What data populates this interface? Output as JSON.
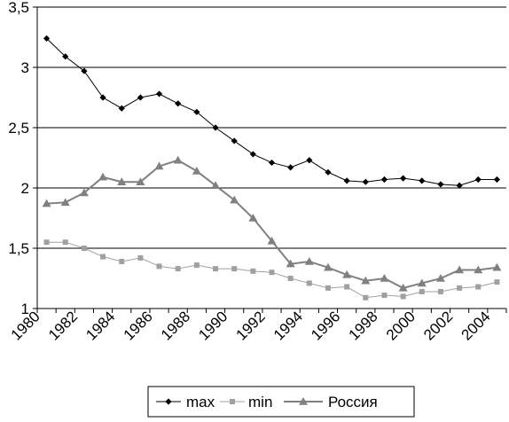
{
  "chart_data": {
    "type": "line",
    "title": "",
    "xlabel": "",
    "ylabel": "",
    "x": [
      1980.5,
      1981.5,
      1982.5,
      1983.5,
      1984.5,
      1985.5,
      1986.5,
      1987.5,
      1988.5,
      1989.5,
      1990.5,
      1991.5,
      1992.5,
      1993.5,
      1994.5,
      1995.5,
      1996.5,
      1997.5,
      1998.5,
      1999.5,
      2000.5,
      2001.5,
      2002.5,
      2003.5,
      2004.5
    ],
    "xlim": [
      1980,
      2005
    ],
    "ylim": [
      1,
      3.5
    ],
    "x_ticks": [
      "1980",
      "1982",
      "1984",
      "1986",
      "1988",
      "1990",
      "1992",
      "1994",
      "1996",
      "1998",
      "2000",
      "2002",
      "2004"
    ],
    "y_ticks": [
      "1",
      "1,5",
      "2",
      "2,5",
      "3",
      "3,5"
    ],
    "grid": "horizontal",
    "legend_position": "bottom",
    "series": [
      {
        "name": "max",
        "marker": "diamond",
        "color": "#000000",
        "values": [
          3.24,
          3.09,
          2.97,
          2.75,
          2.66,
          2.75,
          2.78,
          2.7,
          2.63,
          2.5,
          2.39,
          2.28,
          2.21,
          2.17,
          2.23,
          2.13,
          2.06,
          2.05,
          2.07,
          2.08,
          2.06,
          2.03,
          2.02,
          2.07,
          2.07
        ]
      },
      {
        "name": "min",
        "marker": "square",
        "color": "#a0a0a0",
        "values": [
          1.55,
          1.55,
          1.5,
          1.43,
          1.39,
          1.42,
          1.35,
          1.33,
          1.36,
          1.33,
          1.33,
          1.31,
          1.3,
          1.25,
          1.21,
          1.17,
          1.18,
          1.09,
          1.11,
          1.1,
          1.14,
          1.14,
          1.17,
          1.18,
          1.22
        ]
      },
      {
        "name": "Россия",
        "marker": "triangle",
        "color": "#808080",
        "values": [
          1.87,
          1.88,
          1.96,
          2.09,
          2.05,
          2.05,
          2.18,
          2.23,
          2.14,
          2.02,
          1.9,
          1.75,
          1.56,
          1.37,
          1.39,
          1.34,
          1.28,
          1.23,
          1.25,
          1.17,
          1.21,
          1.25,
          1.32,
          1.32,
          1.34
        ]
      }
    ]
  }
}
